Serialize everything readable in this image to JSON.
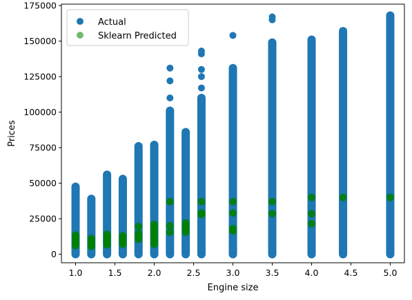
{
  "chart_data": {
    "type": "scatter",
    "xlabel": "Engine size",
    "ylabel": "Prices",
    "xlim": [
      0.82,
      5.18
    ],
    "ylim": [
      -6000,
      176000
    ],
    "x_ticks": [
      1.0,
      1.5,
      2.0,
      2.5,
      3.0,
      3.5,
      4.0,
      4.5,
      5.0
    ],
    "x_tick_labels": [
      "1.0",
      "1.5",
      "2.0",
      "2.5",
      "3.0",
      "3.5",
      "4.0",
      "4.5",
      "5.0"
    ],
    "y_ticks": [
      0,
      25000,
      50000,
      75000,
      100000,
      125000,
      150000,
      175000
    ],
    "y_tick_labels": [
      "0",
      "25000",
      "50000",
      "75000",
      "100000",
      "125000",
      "150000",
      "175000"
    ],
    "grid": false,
    "legend_position": "upper-left",
    "series": [
      {
        "name": "Actual",
        "color": "#1f77b4",
        "columns": [
          {
            "x": 1.0,
            "min": 0,
            "max": 47500,
            "outliers": []
          },
          {
            "x": 1.2,
            "min": 0,
            "max": 39000,
            "outliers": []
          },
          {
            "x": 1.4,
            "min": 0,
            "max": 56000,
            "outliers": []
          },
          {
            "x": 1.6,
            "min": 0,
            "max": 53000,
            "outliers": []
          },
          {
            "x": 1.8,
            "min": 0,
            "max": 76000,
            "outliers": []
          },
          {
            "x": 2.0,
            "min": 0,
            "max": 77000,
            "outliers": []
          },
          {
            "x": 2.2,
            "min": 0,
            "max": 101000,
            "outliers": [
              110000,
              122000,
              131000
            ]
          },
          {
            "x": 2.4,
            "min": 0,
            "max": 86000,
            "outliers": []
          },
          {
            "x": 2.6,
            "min": 0,
            "max": 110000,
            "outliers": [
              117000,
              125000,
              130000,
              141000,
              143000
            ]
          },
          {
            "x": 3.0,
            "min": 0,
            "max": 131000,
            "outliers": [
              154000
            ]
          },
          {
            "x": 3.5,
            "min": 0,
            "max": 149000,
            "outliers": [
              165000,
              167000
            ]
          },
          {
            "x": 4.0,
            "min": 0,
            "max": 151000,
            "outliers": []
          },
          {
            "x": 4.4,
            "min": 0,
            "max": 157000,
            "outliers": []
          },
          {
            "x": 5.0,
            "min": 0,
            "max": 168000,
            "outliers": []
          }
        ]
      },
      {
        "name": "Sklearn Predicted",
        "color": "#008000",
        "points": [
          {
            "x": 1.0,
            "y": [
              6000,
              7500,
              9000,
              10500,
              12000,
              13500
            ]
          },
          {
            "x": 1.2,
            "y": [
              5500,
              7000,
              8500,
              10000,
              11000
            ]
          },
          {
            "x": 1.4,
            "y": [
              6500,
              8000,
              9500,
              11000,
              12500,
              14000
            ]
          },
          {
            "x": 1.6,
            "y": [
              7000,
              8500,
              10000,
              11500,
              13000
            ]
          },
          {
            "x": 1.8,
            "y": [
              10500,
              12500,
              14500,
              19500
            ]
          },
          {
            "x": 2.0,
            "y": [
              7000,
              9000,
              11000,
              13000,
              15000,
              17000,
              19000,
              21000
            ]
          },
          {
            "x": 2.2,
            "y": [
              15500,
              20000,
              37000
            ]
          },
          {
            "x": 2.4,
            "y": [
              15500,
              18000,
              20000,
              22000
            ]
          },
          {
            "x": 2.6,
            "y": [
              28000,
              29000,
              37000
            ]
          },
          {
            "x": 3.0,
            "y": [
              16500,
              18000,
              29000,
              37000
            ]
          },
          {
            "x": 3.5,
            "y": [
              28500,
              37000
            ]
          },
          {
            "x": 4.0,
            "y": [
              21500,
              28500,
              40000
            ]
          },
          {
            "x": 4.4,
            "y": [
              40000
            ]
          },
          {
            "x": 5.0,
            "y": [
              40000
            ]
          }
        ]
      }
    ]
  }
}
